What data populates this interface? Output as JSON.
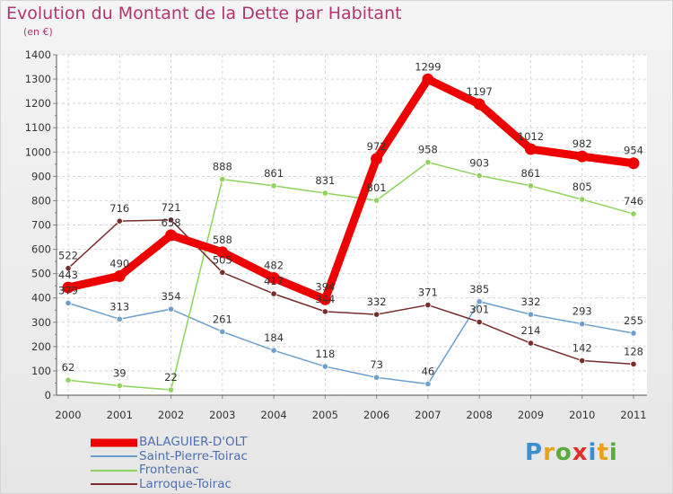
{
  "chart_data": {
    "type": "line",
    "title": "Evolution du Montant de la Dette par Habitant",
    "subtitle": "(en €)",
    "xlabel": "",
    "ylabel": "",
    "x": [
      "2000",
      "2001",
      "2002",
      "2003",
      "2004",
      "2005",
      "2006",
      "2007",
      "2008",
      "2009",
      "2010",
      "2011"
    ],
    "ylim": [
      0,
      1400
    ],
    "yticks": [
      "0",
      "100",
      "200",
      "300",
      "400",
      "500",
      "600",
      "700",
      "800",
      "900",
      "1000",
      "1100",
      "1200",
      "1300",
      "1400"
    ],
    "grid": true,
    "legend_position": "bottom-left",
    "series": [
      {
        "name": "BALAGUIER-D'OLT",
        "color": "#ee0000",
        "values": [
          443,
          490,
          658,
          588,
          482,
          394,
          972,
          1299,
          1197,
          1012,
          982,
          954
        ]
      },
      {
        "name": "Saint-Pierre-Toirac",
        "color": "#6a9fcf",
        "values": [
          379,
          313,
          354,
          261,
          184,
          118,
          73,
          46,
          385,
          332,
          293,
          255
        ]
      },
      {
        "name": "Frontenac",
        "color": "#8ed35b",
        "values": [
          62,
          39,
          22,
          888,
          861,
          831,
          801,
          958,
          903,
          861,
          805,
          746
        ]
      },
      {
        "name": "Larroque-Toirac",
        "color": "#7a2b2b",
        "values": [
          522,
          716,
          721,
          505,
          417,
          344,
          332,
          371,
          301,
          214,
          142,
          128
        ]
      }
    ]
  },
  "brand": {
    "letters": [
      "P",
      "r",
      "o",
      "x",
      "i",
      "t",
      "i"
    ],
    "colors": [
      "#3b8fd0",
      "#e8a21a",
      "#5aaa3c",
      "#e0302a",
      "#3b8fd0",
      "#e8a21a",
      "#5aaa3c"
    ]
  }
}
